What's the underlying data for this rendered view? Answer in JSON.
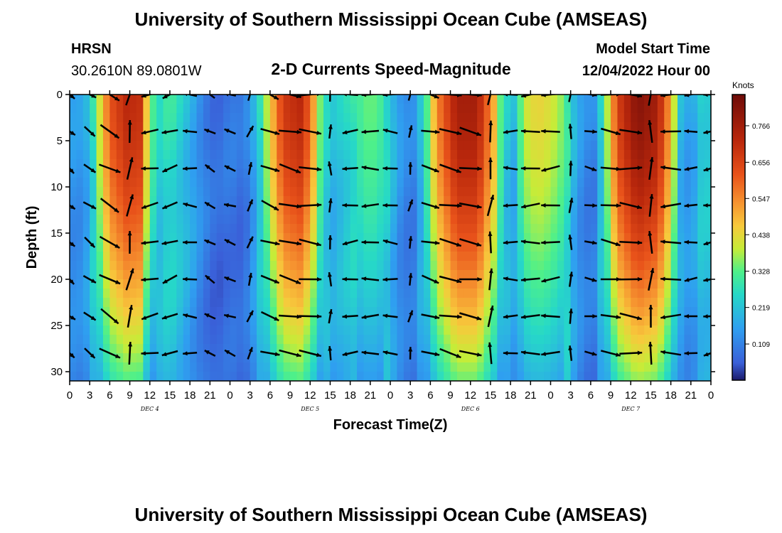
{
  "header": {
    "title_top": "University of Southern Mississippi Ocean Cube (AMSEAS)",
    "station": "HRSN",
    "location": "30.2610N  89.0801W",
    "subtitle": "2-D Currents Speed-Magnitude",
    "model_label": "Model Start Time",
    "model_time": "12/04/2022 Hour 00",
    "title_bottom": "University of Southern Mississippi Ocean Cube (AMSEAS)"
  },
  "colors": {
    "arrow": "#000000",
    "frame": "#000000"
  },
  "chart_data": {
    "type": "heatmap",
    "title": "2-D Currents Speed-Magnitude",
    "xlabel": "Forecast Time(Z)",
    "ylabel": "Depth (ft)",
    "x_ticks": [
      "0",
      "3",
      "6",
      "9",
      "12",
      "15",
      "18",
      "21",
      "0",
      "3",
      "6",
      "9",
      "12",
      "15",
      "18",
      "21",
      "0",
      "3",
      "6",
      "9",
      "12",
      "15",
      "18",
      "21",
      "0",
      "3",
      "6",
      "9",
      "12",
      "15",
      "18",
      "21",
      "0"
    ],
    "x_range_hours": [
      0,
      96
    ],
    "day_labels": [
      {
        "label": "DEC 4",
        "hour": 12
      },
      {
        "label": "DEC 5",
        "hour": 36
      },
      {
        "label": "DEC 6",
        "hour": 60
      },
      {
        "label": "DEC 7",
        "hour": 84
      }
    ],
    "y_ticks": [
      0,
      5,
      10,
      15,
      20,
      25,
      30
    ],
    "y_range_ft": [
      0,
      31
    ],
    "colorbar": {
      "unit": "Knots",
      "ticks": [
        "0.766",
        "0.656",
        "0.547",
        "0.438",
        "0.328",
        "0.219",
        "0.109"
      ],
      "tick_values": [
        0.766,
        0.656,
        0.547,
        0.438,
        0.328,
        0.219,
        0.109
      ],
      "range": [
        0.0,
        0.86
      ]
    },
    "arrow_depths_ft": [
      0,
      4,
      8,
      12,
      16,
      20,
      24,
      28
    ],
    "arrow_hours": [
      0,
      3,
      6,
      9,
      12,
      15,
      18,
      21,
      24,
      27,
      30,
      33,
      36,
      39,
      42,
      45,
      48,
      51,
      54,
      57,
      60,
      63,
      66,
      69,
      72,
      75,
      78,
      81,
      84,
      87,
      90,
      93,
      96
    ],
    "speed_profile": [
      [
        0,
        0.15
      ],
      [
        1.5,
        0.15
      ],
      [
        3,
        0.2
      ],
      [
        4,
        0.35
      ],
      [
        6,
        0.62
      ],
      [
        8.5,
        0.72
      ],
      [
        10.5,
        0.7
      ],
      [
        12,
        0.35
      ],
      [
        13.5,
        0.25
      ],
      [
        15,
        0.3
      ],
      [
        16.5,
        0.25
      ],
      [
        18,
        0.2
      ],
      [
        20,
        0.12
      ],
      [
        22,
        0.07
      ],
      [
        24,
        0.1
      ],
      [
        26,
        0.08
      ],
      [
        28,
        0.2
      ],
      [
        30,
        0.45
      ],
      [
        32,
        0.68
      ],
      [
        34.5,
        0.72
      ],
      [
        36,
        0.6
      ],
      [
        37.5,
        0.35
      ],
      [
        39,
        0.2
      ],
      [
        41,
        0.25
      ],
      [
        43,
        0.3
      ],
      [
        45,
        0.35
      ],
      [
        47,
        0.3
      ],
      [
        48.5,
        0.2
      ],
      [
        50,
        0.12
      ],
      [
        51.5,
        0.12
      ],
      [
        53,
        0.25
      ],
      [
        55,
        0.55
      ],
      [
        58,
        0.76
      ],
      [
        61,
        0.76
      ],
      [
        63.5,
        0.5
      ],
      [
        65,
        0.25
      ],
      [
        66.5,
        0.2
      ],
      [
        68,
        0.4
      ],
      [
        70,
        0.45
      ],
      [
        72,
        0.42
      ],
      [
        74,
        0.35
      ],
      [
        75.5,
        0.2
      ],
      [
        77,
        0.12
      ],
      [
        78.5,
        0.12
      ],
      [
        80,
        0.3
      ],
      [
        82,
        0.66
      ],
      [
        85,
        0.82
      ],
      [
        88,
        0.76
      ],
      [
        90,
        0.5
      ],
      [
        91.5,
        0.2
      ],
      [
        93,
        0.15
      ],
      [
        94.5,
        0.25
      ],
      [
        96,
        0.25
      ]
    ],
    "direction_profile_deg": [
      [
        0,
        -40
      ],
      [
        6,
        -30
      ],
      [
        12,
        190
      ],
      [
        15,
        200
      ],
      [
        21,
        150
      ],
      [
        24,
        160
      ],
      [
        30,
        -20
      ],
      [
        36,
        -5
      ],
      [
        42,
        185
      ],
      [
        48,
        175
      ],
      [
        54,
        -15
      ],
      [
        60,
        -10
      ],
      [
        66,
        180
      ],
      [
        72,
        185
      ],
      [
        78,
        -10
      ],
      [
        84,
        -5
      ],
      [
        90,
        180
      ],
      [
        96,
        190
      ]
    ]
  }
}
